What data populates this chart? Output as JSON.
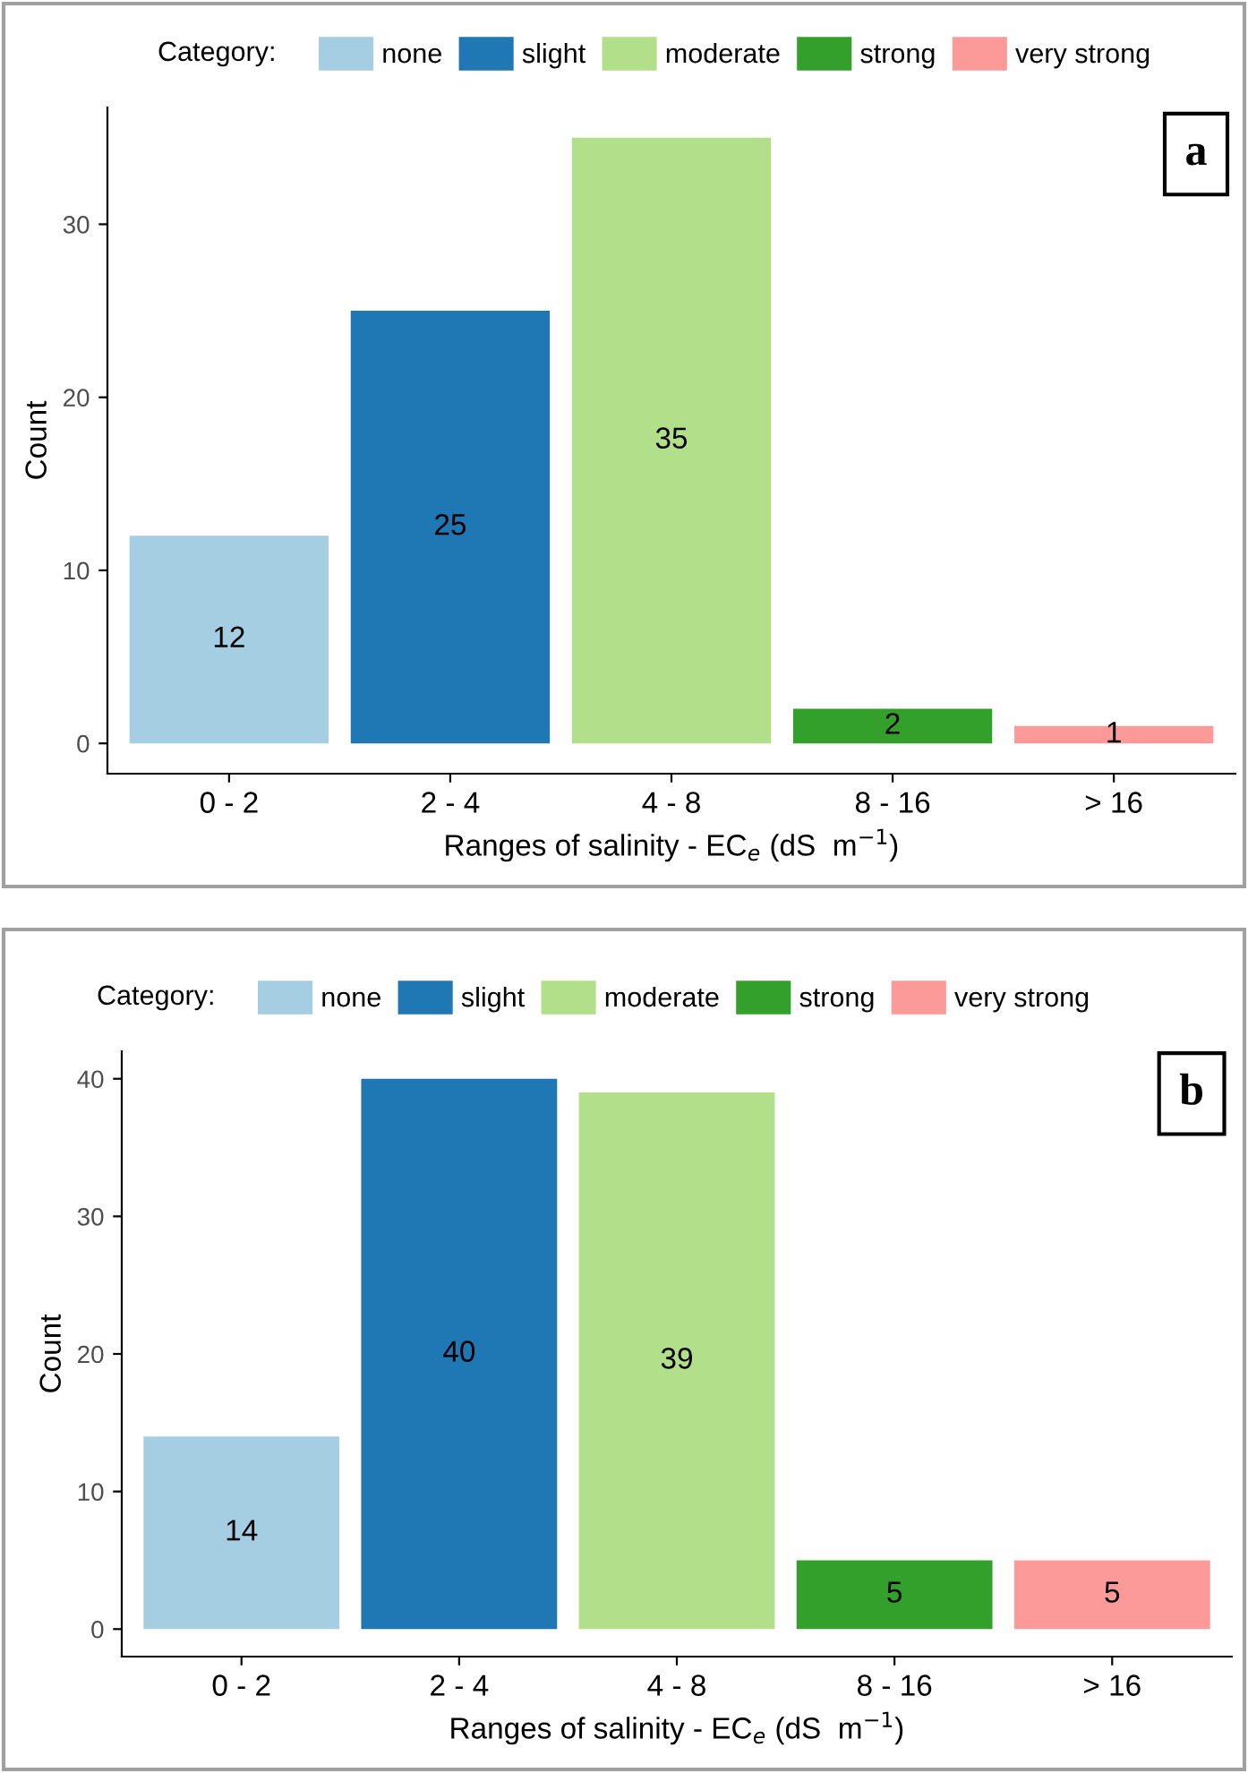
{
  "chart_data": [
    {
      "type": "bar",
      "categories": [
        "0 - 2",
        "2 - 4",
        "4 - 8",
        "8 - 16",
        "> 16"
      ],
      "xlabel": "Ranges of salinity - EC$_{e}$ (dS  m$^{−1}$)",
      "ylabel": "Count",
      "legend_title": "Category:",
      "legend": "top",
      "grid": false,
      "data_labels": true,
      "ylim": [
        -1.75,
        36.75
      ],
      "yticks": [
        0,
        10,
        20,
        30
      ],
      "annotations": [
        "a"
      ],
      "series": [
        {
          "name": "none",
          "color": "#a6cee3",
          "values": [
            12,
            null,
            null,
            null,
            null
          ]
        },
        {
          "name": "slight",
          "color": "#1f78b4",
          "values": [
            null,
            25,
            null,
            null,
            null
          ]
        },
        {
          "name": "moderate",
          "color": "#b2df8a",
          "values": [
            null,
            null,
            35,
            null,
            null
          ]
        },
        {
          "name": "strong",
          "color": "#33a02c",
          "values": [
            null,
            null,
            null,
            2,
            null
          ]
        },
        {
          "name": "very strong",
          "color": "#fb9a99",
          "values": [
            null,
            null,
            null,
            null,
            1
          ]
        }
      ]
    },
    {
      "type": "bar",
      "categories": [
        "0 - 2",
        "2 - 4",
        "4 - 8",
        "8 - 16",
        "> 16"
      ],
      "xlabel": "Ranges of salinity - EC$_{e}$ (dS  m$^{−1}$)",
      "ylabel": "Count",
      "legend_title": "Category:",
      "legend": "top",
      "grid": false,
      "data_labels": true,
      "ylim": [
        -2,
        42
      ],
      "yticks": [
        0,
        10,
        20,
        30,
        40
      ],
      "annotations": [
        "b"
      ],
      "series": [
        {
          "name": "none",
          "color": "#a6cee3",
          "values": [
            14,
            null,
            null,
            null,
            null
          ]
        },
        {
          "name": "slight",
          "color": "#1f78b4",
          "values": [
            null,
            40,
            null,
            null,
            null
          ]
        },
        {
          "name": "moderate",
          "color": "#b2df8a",
          "values": [
            null,
            null,
            39,
            null,
            null
          ]
        },
        {
          "name": "strong",
          "color": "#33a02c",
          "values": [
            null,
            null,
            null,
            5,
            null
          ]
        },
        {
          "name": "very strong",
          "color": "#fb9a99",
          "values": [
            null,
            null,
            null,
            null,
            5
          ]
        }
      ]
    }
  ]
}
